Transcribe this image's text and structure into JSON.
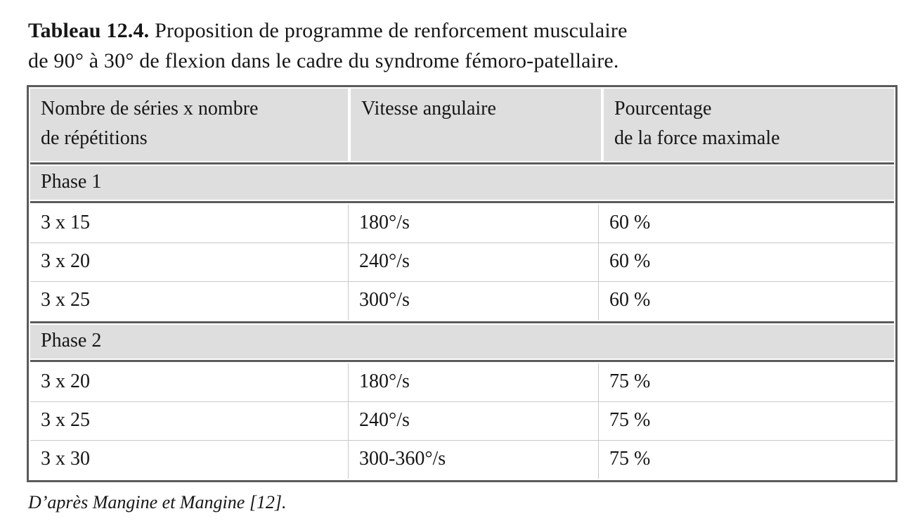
{
  "title": {
    "label": "Tableau 12.4.",
    "rest_line1": "Proposition de programme de renforcement musculaire",
    "line2": "de 90° à 30° de flexion dans le cadre du syndrome fémoro-patellaire."
  },
  "table": {
    "columns": [
      {
        "line1": "Nombre de séries x nombre",
        "line2": "de répétitions"
      },
      {
        "line1": "Vitesse angulaire",
        "line2": ""
      },
      {
        "line1": "Pourcentage",
        "line2": "de la force maximale"
      }
    ],
    "phase1": {
      "label": "Phase 1",
      "rows": [
        [
          "3 x 15",
          "180°/s",
          "60 %"
        ],
        [
          "3 x 20",
          "240°/s",
          "60 %"
        ],
        [
          "3 x 25",
          "300°/s",
          "60 %"
        ]
      ]
    },
    "phase2": {
      "label": "Phase 2",
      "rows": [
        [
          "3 x 20",
          "180°/s",
          "75 %"
        ],
        [
          "3 x 25",
          "240°/s",
          "75 %"
        ],
        [
          "3 x 30",
          "300-360°/s",
          "75 %"
        ]
      ]
    }
  },
  "footer": {
    "source": "D’après Mangine et Mangine [12]."
  },
  "colors": {
    "header_bg": "#dedede",
    "outer_border": "#5b5b5e",
    "thin_separator": "#c9c9c9",
    "text": "#161616"
  }
}
